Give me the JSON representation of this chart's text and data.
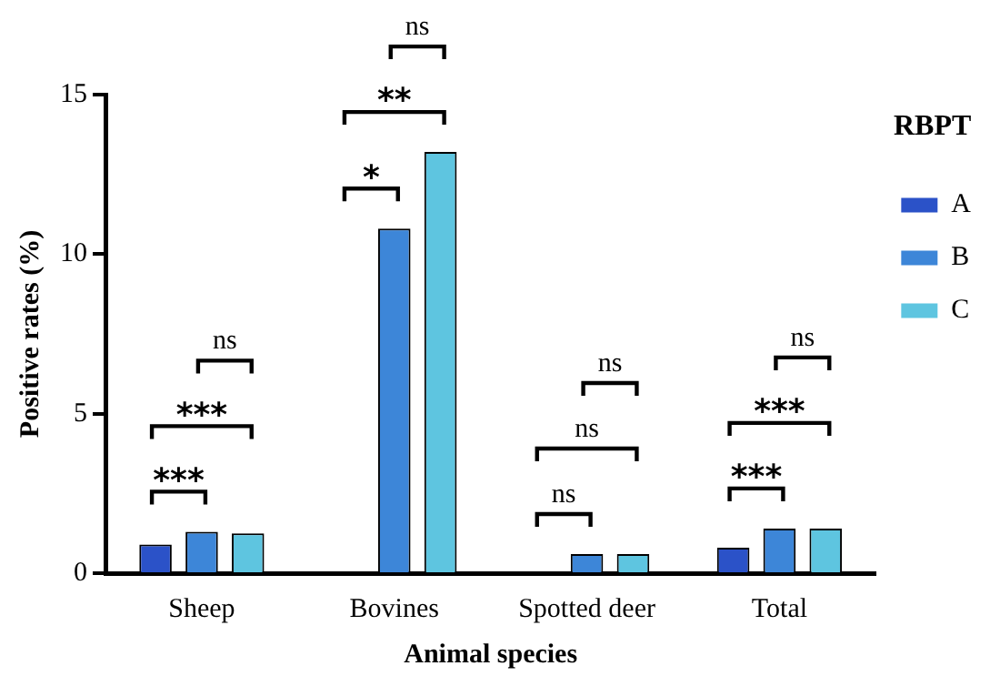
{
  "chart_data": {
    "type": "bar",
    "xlabel": "Animal species",
    "ylabel": "Positive rates (%)",
    "legend_title": "RBPT",
    "legend": "right",
    "grid": false,
    "categories": [
      "Sheep",
      "Bovines",
      "Spotted deer",
      "Total"
    ],
    "series": [
      {
        "name": "A",
        "color": "#2b52c8",
        "values": [
          0.9,
          0,
          0,
          0.8
        ]
      },
      {
        "name": "B",
        "color": "#3d86d8",
        "values": [
          1.3,
          10.8,
          0.6,
          1.4
        ]
      },
      {
        "name": "C",
        "color": "#5ec5e0",
        "values": [
          1.25,
          13.2,
          0.6,
          1.4
        ]
      }
    ],
    "ylim": [
      0,
      15
    ],
    "yticks": [
      0,
      5,
      10,
      15
    ],
    "annotations": [
      "***",
      "***",
      "ns",
      "*",
      "**",
      "ns",
      "ns",
      "ns",
      "ns",
      "***",
      "***",
      "ns"
    ]
  }
}
